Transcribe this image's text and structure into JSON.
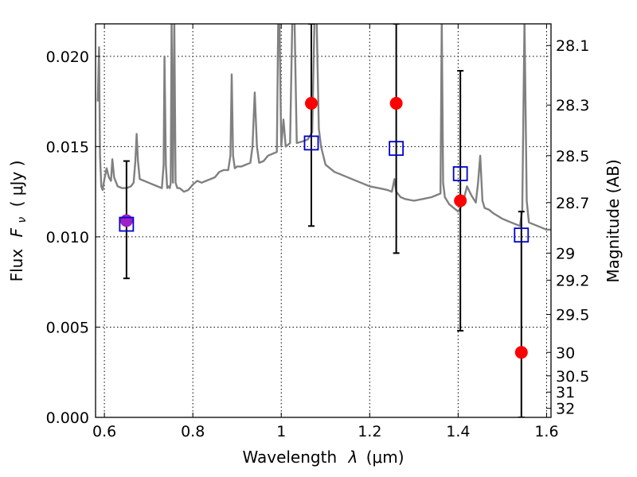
{
  "chart_data": {
    "type": "scatter",
    "xlabel_text": "Wavelength",
    "xlabel_math": "λ",
    "xlabel_unit": "(μm)",
    "ylabel_text": "Flux",
    "ylabel_math": "F",
    "ylabel_sub": "ν",
    "ylabel_unit": "( μJy )",
    "y2label": "Magnitude (AB)",
    "xlim": [
      0.58,
      1.61
    ],
    "ylim": [
      0.0,
      0.0218
    ],
    "grid": true,
    "x_ticks": [
      {
        "value": 0.6,
        "label": "0.6"
      },
      {
        "value": 0.8,
        "label": "0.8"
      },
      {
        "value": 1.0,
        "label": "1"
      },
      {
        "value": 1.2,
        "label": "1.2"
      },
      {
        "value": 1.4,
        "label": "1.4"
      },
      {
        "value": 1.6,
        "label": "1.6"
      }
    ],
    "y_ticks": [
      {
        "value": 0.0,
        "label": "0.000"
      },
      {
        "value": 0.005,
        "label": "0.005"
      },
      {
        "value": 0.01,
        "label": "0.010"
      },
      {
        "value": 0.015,
        "label": "0.015"
      },
      {
        "value": 0.02,
        "label": "0.020"
      }
    ],
    "y2_ticks": [
      {
        "flux": 0.0206,
        "label": "28.1"
      },
      {
        "flux": 0.0173,
        "label": "28.3"
      },
      {
        "flux": 0.0145,
        "label": "28.5"
      },
      {
        "flux": 0.0119,
        "label": "28.7"
      },
      {
        "flux": 0.0091,
        "label": "29"
      },
      {
        "flux": 0.0076,
        "label": "29.2"
      },
      {
        "flux": 0.0057,
        "label": "29.5"
      },
      {
        "flux": 0.0036,
        "label": "30"
      },
      {
        "flux": 0.0023,
        "label": "30.5"
      },
      {
        "flux": 0.0014,
        "label": "31"
      },
      {
        "flux": 0.0005,
        "label": "32"
      }
    ],
    "series": [
      {
        "kind": "spectrum",
        "color": "#808080",
        "points": [
          [
            0.585,
            0.0175
          ],
          [
            0.588,
            0.0205
          ],
          [
            0.59,
            0.0145
          ],
          [
            0.593,
            0.0128
          ],
          [
            0.596,
            0.0126
          ],
          [
            0.6,
            0.0132
          ],
          [
            0.605,
            0.0138
          ],
          [
            0.61,
            0.0133
          ],
          [
            0.615,
            0.0131
          ],
          [
            0.618,
            0.0143
          ],
          [
            0.622,
            0.0133
          ],
          [
            0.63,
            0.0128
          ],
          [
            0.64,
            0.0127
          ],
          [
            0.65,
            0.0127
          ],
          [
            0.66,
            0.0128
          ],
          [
            0.666,
            0.013
          ],
          [
            0.67,
            0.0142
          ],
          [
            0.673,
            0.0157
          ],
          [
            0.676,
            0.0142
          ],
          [
            0.68,
            0.0132
          ],
          [
            0.69,
            0.0131
          ],
          [
            0.7,
            0.013
          ],
          [
            0.71,
            0.0129
          ],
          [
            0.72,
            0.0128
          ],
          [
            0.73,
            0.0127
          ],
          [
            0.734,
            0.014
          ],
          [
            0.736,
            0.02
          ],
          [
            0.739,
            0.014
          ],
          [
            0.742,
            0.0127
          ],
          [
            0.745,
            0.0128
          ],
          [
            0.748,
            0.0127
          ],
          [
            0.75,
            0.013
          ],
          [
            0.752,
            0.022
          ],
          [
            0.755,
            0.013
          ],
          [
            0.758,
            0.022
          ],
          [
            0.761,
            0.013
          ],
          [
            0.765,
            0.0127
          ],
          [
            0.77,
            0.0127
          ],
          [
            0.78,
            0.0125
          ],
          [
            0.79,
            0.0126
          ],
          [
            0.8,
            0.0129
          ],
          [
            0.81,
            0.0131
          ],
          [
            0.82,
            0.013
          ],
          [
            0.83,
            0.0131
          ],
          [
            0.84,
            0.0132
          ],
          [
            0.85,
            0.0133
          ],
          [
            0.86,
            0.0136
          ],
          [
            0.87,
            0.0137
          ],
          [
            0.88,
            0.0137
          ],
          [
            0.885,
            0.0145
          ],
          [
            0.888,
            0.019
          ],
          [
            0.891,
            0.0145
          ],
          [
            0.895,
            0.0138
          ],
          [
            0.9,
            0.0139
          ],
          [
            0.91,
            0.0139
          ],
          [
            0.92,
            0.014
          ],
          [
            0.93,
            0.0141
          ],
          [
            0.935,
            0.015
          ],
          [
            0.94,
            0.018
          ],
          [
            0.945,
            0.015
          ],
          [
            0.95,
            0.0141
          ],
          [
            0.96,
            0.0142
          ],
          [
            0.97,
            0.0145
          ],
          [
            0.98,
            0.0146
          ],
          [
            0.99,
            0.0147
          ],
          [
            0.993,
            0.022
          ],
          [
            0.996,
            0.022
          ],
          [
            1.0,
            0.015
          ],
          [
            1.005,
            0.0165
          ],
          [
            1.01,
            0.015
          ],
          [
            1.02,
            0.0152
          ],
          [
            1.025,
            0.022
          ],
          [
            1.03,
            0.022
          ],
          [
            1.035,
            0.0152
          ],
          [
            1.05,
            0.0153
          ],
          [
            1.06,
            0.0154
          ],
          [
            1.07,
            0.0158
          ],
          [
            1.075,
            0.022
          ],
          [
            1.08,
            0.022
          ],
          [
            1.085,
            0.016
          ],
          [
            1.09,
            0.015
          ],
          [
            1.1,
            0.014
          ],
          [
            1.12,
            0.0136
          ],
          [
            1.14,
            0.0134
          ],
          [
            1.16,
            0.0132
          ],
          [
            1.18,
            0.013
          ],
          [
            1.2,
            0.0128
          ],
          [
            1.22,
            0.0127
          ],
          [
            1.24,
            0.0126
          ],
          [
            1.25,
            0.0125
          ],
          [
            1.256,
            0.0132
          ],
          [
            1.26,
            0.0125
          ],
          [
            1.27,
            0.0122
          ],
          [
            1.28,
            0.0121
          ],
          [
            1.3,
            0.012
          ],
          [
            1.32,
            0.0121
          ],
          [
            1.34,
            0.0122
          ],
          [
            1.36,
            0.0124
          ],
          [
            1.363,
            0.022
          ],
          [
            1.366,
            0.013
          ],
          [
            1.37,
            0.0122
          ],
          [
            1.38,
            0.0118
          ],
          [
            1.39,
            0.0116
          ],
          [
            1.4,
            0.0114
          ],
          [
            1.41,
            0.0118
          ],
          [
            1.42,
            0.0128
          ],
          [
            1.43,
            0.0123
          ],
          [
            1.44,
            0.0119
          ],
          [
            1.445,
            0.013
          ],
          [
            1.45,
            0.0145
          ],
          [
            1.455,
            0.012
          ],
          [
            1.46,
            0.0116
          ],
          [
            1.47,
            0.0115
          ],
          [
            1.48,
            0.0113
          ],
          [
            1.5,
            0.011
          ],
          [
            1.52,
            0.0108
          ],
          [
            1.54,
            0.0106
          ],
          [
            1.545,
            0.0115
          ],
          [
            1.55,
            0.022
          ],
          [
            1.555,
            0.012
          ],
          [
            1.56,
            0.0108
          ],
          [
            1.58,
            0.0106
          ],
          [
            1.6,
            0.0104
          ],
          [
            1.61,
            0.0104
          ]
        ]
      },
      {
        "kind": "model-points",
        "marker": "circle",
        "color": "#ff0000",
        "x": [
          0.65,
          1.068,
          1.26,
          1.405,
          1.543
        ],
        "y": [
          0.0109,
          0.0174,
          0.0174,
          0.012,
          0.0036
        ]
      },
      {
        "kind": "observed-points",
        "marker": "open-square",
        "color": "#0000cc",
        "x": [
          0.65,
          1.068,
          1.26,
          1.405,
          1.543
        ],
        "y": [
          0.0107,
          0.0152,
          0.0149,
          0.0135,
          0.0101
        ],
        "err_low": [
          0.0077,
          0.0106,
          0.0091,
          0.0048,
          0.0
        ],
        "err_high": [
          0.0142,
          0.0218,
          0.0218,
          0.0192,
          0.0114
        ]
      }
    ],
    "colors": {
      "overlap_marker": "#a020c8"
    }
  }
}
